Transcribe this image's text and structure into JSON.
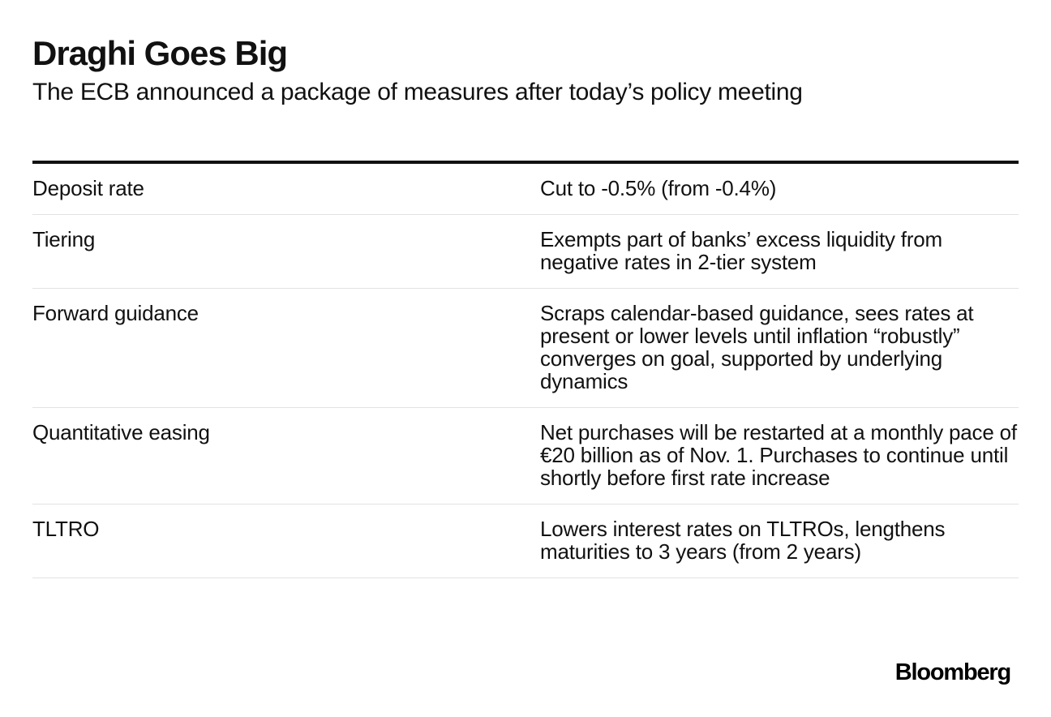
{
  "header": {
    "title": "Draghi Goes Big",
    "subtitle": "The ECB announced a package of measures after today’s policy meeting"
  },
  "table": {
    "rows": [
      {
        "measure": "Deposit rate",
        "detail": "Cut to -0.5% (from -0.4%)"
      },
      {
        "measure": "Tiering",
        "detail": "Exempts part of banks’ excess liquidity from negative rates in 2-tier system"
      },
      {
        "measure": "Forward guidance",
        "detail": "Scraps calendar-based guidance, sees rates at present or lower levels until inflation “robustly” converges on goal, supported by underlying dynamics"
      },
      {
        "measure": "Quantitative easing",
        "detail": "Net purchases will be restarted at a monthly pace of €20 billion as of Nov. 1. Purchases to continue until shortly before first rate increase"
      },
      {
        "measure": "TLTRO",
        "detail": "Lowers interest rates on TLTROs, lengthens maturities to 3 years (from 2 years)"
      }
    ]
  },
  "footer": {
    "logo": "Bloomberg"
  }
}
